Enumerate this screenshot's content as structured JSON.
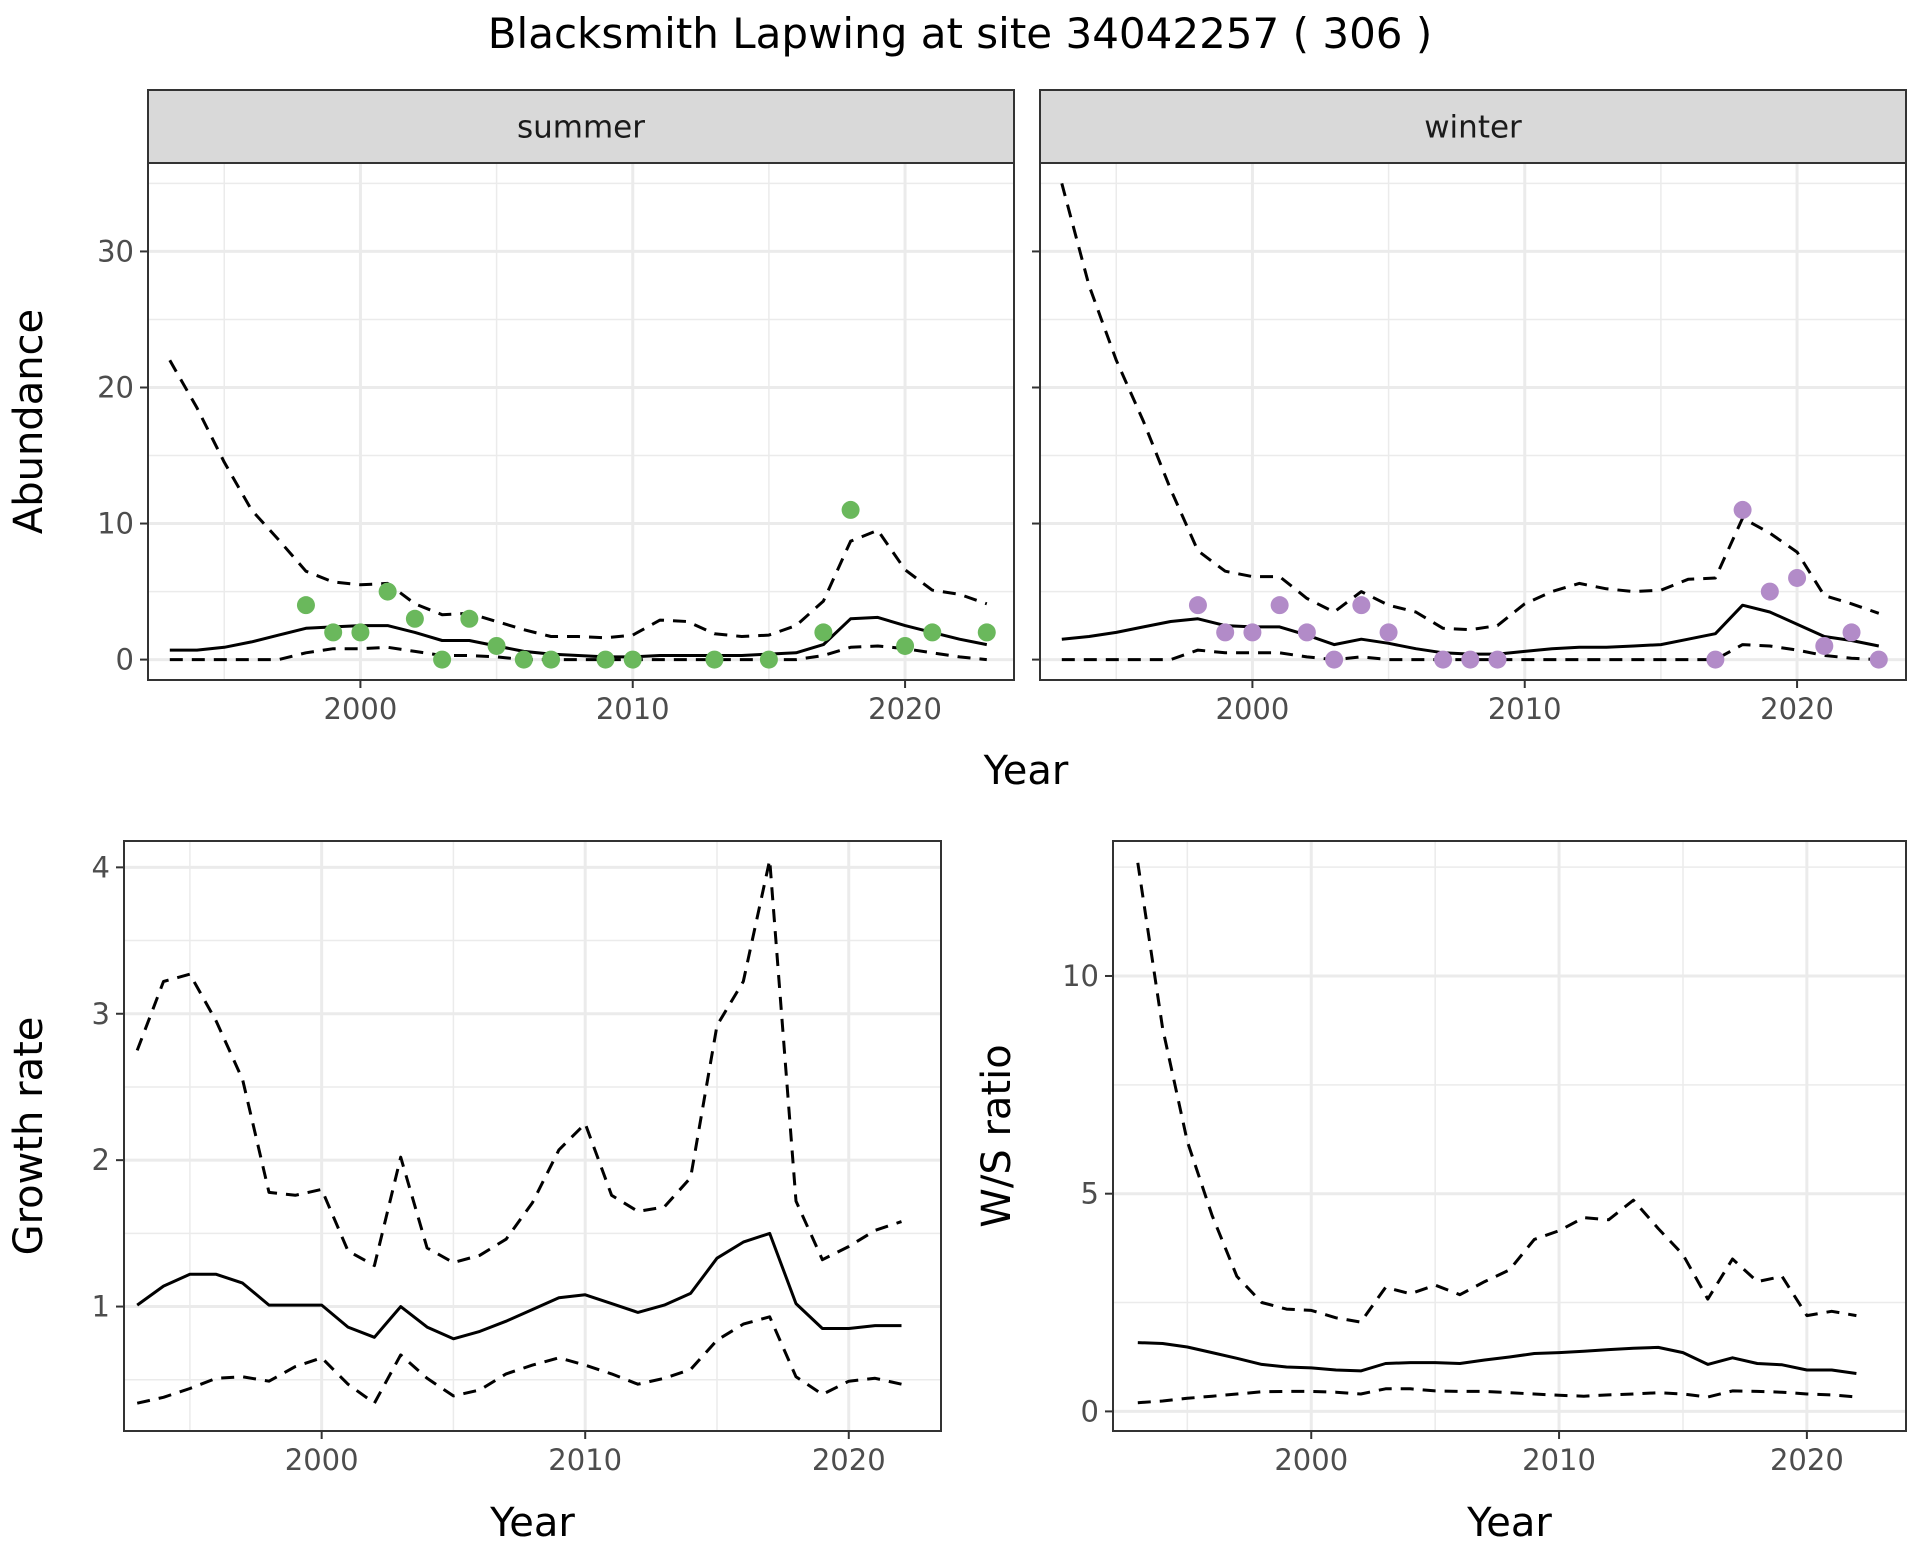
{
  "title": "Blacksmith Lapwing at site 34042257 ( 306 )",
  "abundance_xlabel": "Year",
  "chart_data": [
    {
      "type": "line",
      "id": "summer",
      "strip": "summer",
      "xlabel": "",
      "ylabel": "Abundance",
      "xlim": [
        1992.2,
        2024.0
      ],
      "ylim": [
        -1.5,
        36.5
      ],
      "xticks": [
        2000,
        2010,
        2020
      ],
      "yticks": [
        0,
        10,
        20,
        30
      ],
      "grid": true,
      "point_color": "#6ab85c",
      "x": [
        1993,
        1994,
        1995,
        1996,
        1997,
        1998,
        1999,
        2000,
        2001,
        2002,
        2003,
        2004,
        2005,
        2006,
        2007,
        2008,
        2009,
        2010,
        2011,
        2012,
        2013,
        2014,
        2015,
        2016,
        2017,
        2018,
        2019,
        2020,
        2021,
        2022,
        2023
      ],
      "series": [
        {
          "style": "solid",
          "values": [
            0.7,
            0.7,
            0.9,
            1.3,
            1.8,
            2.3,
            2.4,
            2.5,
            2.5,
            2.0,
            1.4,
            1.4,
            1.0,
            0.6,
            0.4,
            0.3,
            0.2,
            0.2,
            0.3,
            0.3,
            0.3,
            0.3,
            0.4,
            0.5,
            1.1,
            3.0,
            3.1,
            2.5,
            2.0,
            1.5,
            1.1
          ]
        },
        {
          "style": "dashed",
          "values": [
            22.0,
            18.5,
            14.5,
            11.0,
            8.8,
            6.5,
            5.7,
            5.5,
            5.6,
            4.1,
            3.3,
            3.4,
            2.8,
            2.2,
            1.7,
            1.7,
            1.6,
            1.8,
            2.9,
            2.8,
            1.9,
            1.7,
            1.8,
            2.5,
            4.3,
            8.7,
            9.5,
            6.6,
            5.1,
            4.8,
            4.1
          ]
        },
        {
          "style": "dashed",
          "values": [
            0,
            0,
            0,
            0,
            0,
            0.5,
            0.8,
            0.8,
            0.9,
            0.6,
            0.3,
            0.3,
            0.2,
            0,
            0,
            0,
            0,
            0,
            0,
            0,
            0,
            0,
            0,
            0,
            0.3,
            0.9,
            1.0,
            0.8,
            0.5,
            0.2,
            0
          ]
        }
      ],
      "points": [
        {
          "x": 1998,
          "y": 4
        },
        {
          "x": 1999,
          "y": 2
        },
        {
          "x": 2000,
          "y": 2
        },
        {
          "x": 2001,
          "y": 5
        },
        {
          "x": 2002,
          "y": 3
        },
        {
          "x": 2003,
          "y": 0
        },
        {
          "x": 2004,
          "y": 3
        },
        {
          "x": 2005,
          "y": 1
        },
        {
          "x": 2006,
          "y": 0
        },
        {
          "x": 2007,
          "y": 0
        },
        {
          "x": 2009,
          "y": 0
        },
        {
          "x": 2010,
          "y": 0
        },
        {
          "x": 2013,
          "y": 0
        },
        {
          "x": 2015,
          "y": 0
        },
        {
          "x": 2017,
          "y": 2
        },
        {
          "x": 2018,
          "y": 11
        },
        {
          "x": 2020,
          "y": 1
        },
        {
          "x": 2021,
          "y": 2
        },
        {
          "x": 2023,
          "y": 2
        }
      ]
    },
    {
      "type": "line",
      "id": "winter",
      "strip": "winter",
      "xlabel": "",
      "ylabel": "",
      "xlim": [
        1992.2,
        2024.0
      ],
      "ylim": [
        -1.5,
        36.5
      ],
      "xticks": [
        2000,
        2010,
        2020
      ],
      "yticks": [
        0,
        10,
        20,
        30
      ],
      "grid": true,
      "point_color": "#b28bc8",
      "x": [
        1993,
        1994,
        1995,
        1996,
        1997,
        1998,
        1999,
        2000,
        2001,
        2002,
        2003,
        2004,
        2005,
        2006,
        2007,
        2008,
        2009,
        2010,
        2011,
        2012,
        2013,
        2014,
        2015,
        2016,
        2017,
        2018,
        2019,
        2020,
        2021,
        2022,
        2023
      ],
      "series": [
        {
          "style": "solid",
          "values": [
            1.5,
            1.7,
            2.0,
            2.4,
            2.8,
            3.0,
            2.5,
            2.4,
            2.4,
            1.8,
            1.1,
            1.5,
            1.2,
            0.8,
            0.5,
            0.4,
            0.4,
            0.6,
            0.8,
            0.9,
            0.9,
            1.0,
            1.1,
            1.5,
            1.9,
            4.0,
            3.5,
            2.6,
            1.7,
            1.4,
            1.0
          ]
        },
        {
          "style": "dashed",
          "values": [
            35.0,
            27.5,
            22.0,
            17.5,
            12.5,
            8.0,
            6.5,
            6.1,
            6.1,
            4.5,
            3.5,
            5.0,
            4.0,
            3.5,
            2.3,
            2.2,
            2.5,
            4.1,
            5.0,
            5.6,
            5.2,
            5.0,
            5.1,
            5.9,
            6.0,
            10.4,
            9.3,
            7.9,
            4.7,
            4.1,
            3.4
          ]
        },
        {
          "style": "dashed",
          "values": [
            0,
            0,
            0,
            0,
            0,
            0.7,
            0.5,
            0.5,
            0.5,
            0.2,
            0,
            0.2,
            0,
            0,
            0,
            0,
            0,
            0,
            0,
            0,
            0,
            0,
            0,
            0,
            0,
            1.1,
            1.0,
            0.7,
            0.3,
            0.1,
            0
          ]
        }
      ],
      "points": [
        {
          "x": 1998,
          "y": 4
        },
        {
          "x": 1999,
          "y": 2
        },
        {
          "x": 2000,
          "y": 2
        },
        {
          "x": 2001,
          "y": 4
        },
        {
          "x": 2002,
          "y": 2
        },
        {
          "x": 2003,
          "y": 0
        },
        {
          "x": 2004,
          "y": 4
        },
        {
          "x": 2005,
          "y": 2
        },
        {
          "x": 2007,
          "y": 0
        },
        {
          "x": 2008,
          "y": 0
        },
        {
          "x": 2009,
          "y": 0
        },
        {
          "x": 2017,
          "y": 0
        },
        {
          "x": 2018,
          "y": 11
        },
        {
          "x": 2019,
          "y": 5
        },
        {
          "x": 2020,
          "y": 6
        },
        {
          "x": 2021,
          "y": 1
        },
        {
          "x": 2022,
          "y": 2
        },
        {
          "x": 2023,
          "y": 0
        }
      ]
    },
    {
      "type": "line",
      "id": "growth",
      "xlabel": "Year",
      "ylabel": "Growth rate",
      "xlim": [
        1992.5,
        2023.5
      ],
      "ylim": [
        0.15,
        4.18
      ],
      "xticks": [
        2000,
        2010,
        2020
      ],
      "yticks": [
        1,
        2,
        3,
        4
      ],
      "grid": true,
      "x": [
        1993,
        1994,
        1995,
        1996,
        1997,
        1998,
        1999,
        2000,
        2001,
        2002,
        2003,
        2004,
        2005,
        2006,
        2007,
        2008,
        2009,
        2010,
        2011,
        2012,
        2013,
        2014,
        2015,
        2016,
        2017,
        2018,
        2019,
        2020,
        2021,
        2022
      ],
      "series": [
        {
          "style": "solid",
          "values": [
            1.01,
            1.14,
            1.22,
            1.22,
            1.16,
            1.01,
            1.01,
            1.01,
            0.86,
            0.79,
            1.0,
            0.86,
            0.78,
            0.83,
            0.9,
            0.98,
            1.06,
            1.08,
            1.02,
            0.96,
            1.01,
            1.09,
            1.33,
            1.44,
            1.5,
            1.02,
            0.85,
            0.85,
            0.87,
            0.87
          ]
        },
        {
          "style": "dashed",
          "values": [
            2.75,
            3.22,
            3.27,
            2.95,
            2.55,
            1.78,
            1.76,
            1.8,
            1.38,
            1.28,
            2.02,
            1.4,
            1.3,
            1.35,
            1.46,
            1.71,
            2.07,
            2.25,
            1.76,
            1.65,
            1.68,
            1.88,
            2.92,
            3.22,
            4.05,
            1.72,
            1.32,
            1.41,
            1.52,
            1.58
          ]
        },
        {
          "style": "dashed",
          "values": [
            0.34,
            0.38,
            0.44,
            0.51,
            0.52,
            0.49,
            0.59,
            0.65,
            0.47,
            0.34,
            0.67,
            0.51,
            0.39,
            0.43,
            0.54,
            0.6,
            0.65,
            0.6,
            0.54,
            0.47,
            0.51,
            0.57,
            0.77,
            0.88,
            0.93,
            0.52,
            0.4,
            0.49,
            0.51,
            0.47
          ]
        }
      ]
    },
    {
      "type": "line",
      "id": "ratio",
      "xlabel": "Year",
      "ylabel": "W/S ratio",
      "xlim": [
        1992.0,
        2024.0
      ],
      "ylim": [
        -0.45,
        13.1
      ],
      "xticks": [
        2000,
        2010,
        2020
      ],
      "yticks": [
        0,
        5,
        10
      ],
      "grid": true,
      "x": [
        1993,
        1994,
        1995,
        1996,
        1997,
        1998,
        1999,
        2000,
        2001,
        2002,
        2003,
        2004,
        2005,
        2006,
        2007,
        2008,
        2009,
        2010,
        2011,
        2012,
        2013,
        2014,
        2015,
        2016,
        2017,
        2018,
        2019,
        2020,
        2021,
        2022
      ],
      "series": [
        {
          "style": "solid",
          "values": [
            1.58,
            1.56,
            1.48,
            1.35,
            1.22,
            1.08,
            1.02,
            1.0,
            0.95,
            0.93,
            1.1,
            1.12,
            1.12,
            1.1,
            1.18,
            1.25,
            1.33,
            1.35,
            1.38,
            1.42,
            1.45,
            1.47,
            1.35,
            1.08,
            1.23,
            1.1,
            1.07,
            0.95,
            0.95,
            0.87
          ]
        },
        {
          "style": "dashed",
          "values": [
            12.6,
            8.8,
            6.2,
            4.5,
            3.1,
            2.5,
            2.35,
            2.32,
            2.15,
            2.05,
            2.85,
            2.7,
            2.9,
            2.68,
            2.98,
            3.25,
            3.95,
            4.15,
            4.45,
            4.4,
            4.85,
            4.2,
            3.6,
            2.58,
            3.5,
            2.98,
            3.1,
            2.2,
            2.3,
            2.2
          ]
        },
        {
          "style": "dashed",
          "values": [
            0.2,
            0.24,
            0.3,
            0.35,
            0.4,
            0.45,
            0.46,
            0.46,
            0.44,
            0.4,
            0.52,
            0.52,
            0.47,
            0.46,
            0.46,
            0.43,
            0.4,
            0.37,
            0.35,
            0.38,
            0.4,
            0.43,
            0.4,
            0.33,
            0.47,
            0.46,
            0.44,
            0.4,
            0.38,
            0.33
          ]
        }
      ]
    }
  ]
}
